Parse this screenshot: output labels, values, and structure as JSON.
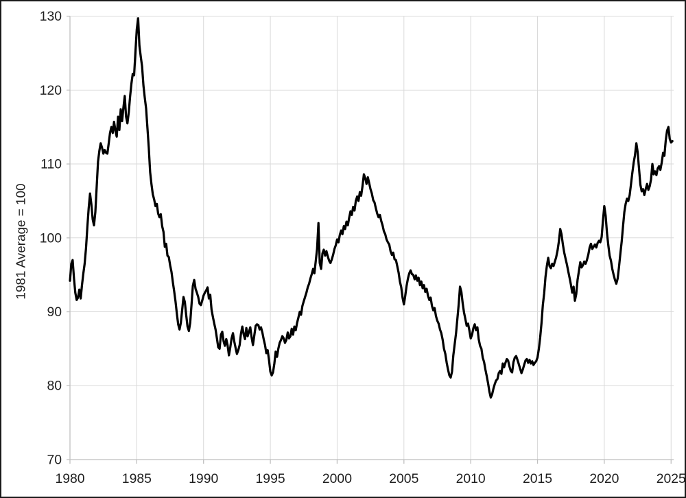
{
  "figure": {
    "background": "#ffffff",
    "border_color": "#1a1a1a"
  },
  "chart_data": {
    "type": "line",
    "title": "",
    "xlabel": "",
    "ylabel": "1981 Average = 100",
    "xlim": [
      1980,
      2025.4
    ],
    "ylim": [
      70,
      130
    ],
    "x_ticks": [
      1980,
      1985,
      1990,
      1995,
      2000,
      2005,
      2010,
      2015,
      2020,
      2025
    ],
    "y_ticks": [
      70,
      80,
      90,
      100,
      110,
      120,
      130
    ],
    "grid": "both-major",
    "legend": "none",
    "colors": {
      "line": "#000000",
      "gridline": "#d9d9d9",
      "axis_line": "#bfbfbf",
      "tick_mark": "#bfbfbf",
      "label_text": "#1f1f1f"
    },
    "series": [
      {
        "name": "index-line",
        "x_start": 1980.0,
        "x_step": 0.1,
        "values": [
          94.2,
          96.5,
          97.0,
          94.5,
          92.6,
          91.6,
          91.9,
          93.0,
          91.8,
          93.6,
          95.2,
          96.5,
          98.6,
          101.5,
          104.0,
          106.0,
          104.6,
          102.5,
          101.7,
          103.5,
          107.0,
          110.3,
          111.8,
          112.8,
          112.2,
          111.4,
          111.9,
          111.5,
          111.4,
          112.8,
          114.2,
          115.0,
          114.2,
          115.7,
          114.5,
          113.7,
          116.4,
          114.6,
          117.4,
          115.8,
          117.6,
          119.2,
          116.4,
          115.5,
          117.0,
          119.1,
          120.9,
          122.2,
          122.0,
          125.1,
          128.2,
          129.7,
          126.0,
          124.5,
          123.2,
          120.6,
          119.0,
          117.5,
          114.8,
          112.2,
          108.9,
          107.3,
          105.9,
          105.2,
          104.3,
          104.6,
          103.3,
          102.8,
          103.2,
          101.6,
          100.8,
          98.8,
          99.2,
          97.6,
          97.4,
          96.3,
          95.4,
          94.0,
          92.8,
          91.4,
          89.8,
          88.3,
          87.6,
          88.5,
          90.3,
          92.0,
          91.3,
          89.6,
          88.0,
          87.4,
          88.5,
          91.0,
          93.5,
          94.3,
          93.1,
          92.6,
          92.0,
          91.1,
          90.9,
          91.5,
          92.2,
          92.6,
          92.9,
          93.3,
          91.8,
          92.3,
          90.3,
          89.3,
          88.4,
          87.6,
          86.4,
          85.2,
          85.0,
          86.9,
          87.3,
          86.0,
          85.4,
          86.3,
          85.5,
          84.1,
          85.2,
          86.4,
          87.1,
          86.0,
          85.1,
          84.3,
          84.8,
          85.5,
          87.0,
          88.0,
          87.0,
          86.3,
          87.8,
          86.7,
          87.3,
          87.9,
          86.5,
          85.5,
          86.8,
          88.1,
          88.3,
          88.2,
          87.6,
          87.9,
          87.2,
          86.3,
          85.5,
          84.4,
          84.8,
          83.5,
          81.9,
          81.4,
          81.8,
          83.0,
          84.6,
          83.9,
          85.0,
          85.8,
          86.2,
          86.7,
          86.4,
          85.8,
          86.2,
          87.2,
          86.4,
          86.7,
          87.7,
          86.9,
          88.0,
          87.5,
          88.5,
          89.2,
          90.0,
          89.6,
          90.8,
          91.4,
          92.0,
          92.6,
          93.3,
          93.8,
          94.5,
          95.1,
          95.8,
          95.2,
          96.9,
          98.5,
          102.0,
          96.6,
          95.8,
          97.9,
          98.4,
          97.6,
          98.2,
          97.5,
          96.9,
          96.6,
          97.1,
          97.7,
          98.5,
          99.0,
          99.8,
          99.4,
          100.4,
          101.0,
          100.5,
          101.6,
          101.2,
          102.2,
          101.7,
          102.7,
          103.6,
          103.1,
          104.2,
          103.7,
          105.0,
          105.6,
          105.0,
          106.2,
          105.7,
          107.0,
          108.6,
          108.1,
          107.3,
          108.2,
          107.4,
          106.6,
          106.0,
          105.1,
          104.8,
          104.0,
          103.3,
          102.8,
          103.1,
          102.3,
          101.7,
          100.9,
          100.5,
          99.8,
          99.4,
          99.1,
          98.2,
          97.7,
          98.0,
          97.1,
          97.0,
          96.2,
          95.3,
          94.1,
          93.3,
          91.9,
          91.0,
          92.2,
          93.5,
          94.5,
          95.2,
          95.6,
          95.1,
          95.0,
          94.4,
          94.9,
          94.2,
          94.6,
          93.6,
          94.1,
          93.2,
          93.6,
          92.7,
          93.1,
          92.2,
          91.6,
          91.9,
          90.8,
          90.2,
          90.5,
          89.4,
          88.8,
          88.4,
          87.6,
          87.1,
          86.2,
          85.0,
          84.3,
          83.1,
          82.2,
          81.4,
          81.1,
          81.9,
          84.1,
          85.6,
          87.1,
          89.0,
          91.0,
          93.4,
          92.7,
          91.1,
          89.9,
          89.0,
          88.1,
          88.4,
          87.5,
          86.4,
          86.9,
          87.8,
          88.3,
          87.5,
          87.9,
          86.3,
          85.4,
          85.0,
          83.8,
          83.2,
          82.2,
          81.3,
          80.3,
          79.2,
          78.4,
          78.8,
          79.6,
          80.2,
          80.7,
          80.9,
          81.7,
          82.0,
          81.6,
          83.0,
          82.5,
          83.1,
          83.6,
          83.4,
          82.6,
          82.0,
          81.8,
          83.2,
          83.8,
          84.0,
          83.5,
          82.9,
          82.3,
          81.7,
          82.2,
          82.8,
          83.4,
          83.6,
          83.1,
          83.5,
          83.0,
          83.3,
          82.8,
          83.1,
          83.3,
          83.8,
          85.0,
          86.5,
          88.5,
          90.9,
          92.5,
          94.7,
          96.2,
          97.3,
          96.2,
          95.9,
          96.5,
          96.2,
          96.8,
          97.4,
          98.3,
          99.5,
          101.2,
          100.5,
          99.1,
          98.0,
          97.2,
          96.4,
          95.5,
          94.6,
          93.7,
          92.6,
          93.4,
          91.5,
          92.4,
          94.3,
          95.5,
          96.7,
          96.0,
          96.3,
          96.8,
          96.5,
          97.0,
          97.7,
          98.7,
          99.2,
          98.5,
          98.8,
          99.1,
          98.7,
          99.3,
          99.6,
          99.4,
          100.1,
          102.3,
          104.3,
          103.0,
          100.7,
          99.0,
          97.6,
          96.9,
          95.8,
          95.0,
          94.3,
          93.8,
          94.5,
          96.0,
          97.8,
          99.5,
          101.5,
          103.5,
          104.6,
          105.3,
          105.0,
          105.8,
          107.3,
          108.8,
          110.2,
          111.2,
          112.8,
          111.6,
          109.4,
          107.2,
          106.3,
          106.6,
          105.8,
          106.6,
          107.3,
          106.5,
          107.0,
          107.9,
          110.0,
          108.6,
          109.0,
          108.5,
          109.4,
          109.7,
          109.2,
          110.2,
          111.5,
          111.1,
          113.2,
          114.5,
          115.0,
          113.4,
          112.9,
          113.1
        ]
      }
    ]
  }
}
